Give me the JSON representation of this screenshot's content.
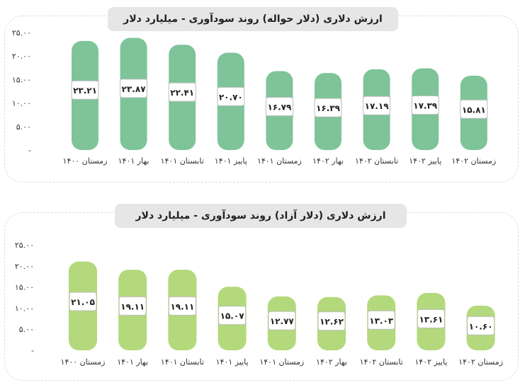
{
  "chart_data": [
    {
      "type": "bar",
      "title": "ارزش دلاری (دلار حواله) روند سودآوری - میلیارد دلار",
      "categories": [
        "زمستان ۱۴۰۰",
        "بهار ۱۴۰۱",
        "تابستان ۱۴۰۱",
        "پاییز ۱۴۰۱",
        "زمستان ۱۴۰۱",
        "بهار ۱۴۰۲",
        "تابستان ۱۴۰۲",
        "پاییز ۱۴۰۲",
        "زمستان ۱۴۰۲"
      ],
      "values": [
        23.21,
        23.87,
        22.41,
        20.7,
        16.79,
        16.39,
        17.19,
        17.39,
        15.81
      ],
      "value_labels": [
        "۲۳.۲۱",
        "۲۳.۸۷",
        "۲۲.۴۱",
        "۲۰.۷۰",
        "۱۶.۷۹",
        "۱۶.۳۹",
        "۱۷.۱۹",
        "۱۷.۳۹",
        "۱۵.۸۱"
      ],
      "y_ticks": [
        "۲۵.۰۰",
        "۲۰.۰۰",
        "۱۵.۰۰",
        "۱۰.۰۰",
        "۵.۰۰",
        "-"
      ],
      "ylim": [
        0,
        25
      ],
      "color": "#7ec498"
    },
    {
      "type": "bar",
      "title": "ارزش دلاری (دلار آزاد) روند سودآوری - میلیارد دلار",
      "categories": [
        "زمستان ۱۴۰۰",
        "بهار ۱۴۰۱",
        "تابستان ۱۴۰۱",
        "پاییز ۱۴۰۱",
        "زمستان ۱۴۰۱",
        "بهار ۱۴۰۲",
        "تابستان ۱۴۰۲",
        "پاییز ۱۴۰۲",
        "زمستان ۱۴۰۲"
      ],
      "values": [
        21.05,
        19.11,
        19.11,
        15.07,
        12.77,
        12.62,
        13.03,
        13.61,
        10.6
      ],
      "value_labels": [
        "۲۱.۰۵",
        "۱۹.۱۱",
        "۱۹.۱۱",
        "۱۵.۰۷",
        "۱۲.۷۷",
        "۱۲.۶۲",
        "۱۳.۰۳",
        "۱۳.۶۱",
        "۱۰.۶۰"
      ],
      "y_ticks": [
        "۲۵.۰۰",
        "۲۰.۰۰",
        "۱۵.۰۰",
        "۱۰.۰۰",
        "۵.۰۰",
        "-"
      ],
      "ylim": [
        0,
        25
      ],
      "color": "#b3d97c"
    }
  ]
}
